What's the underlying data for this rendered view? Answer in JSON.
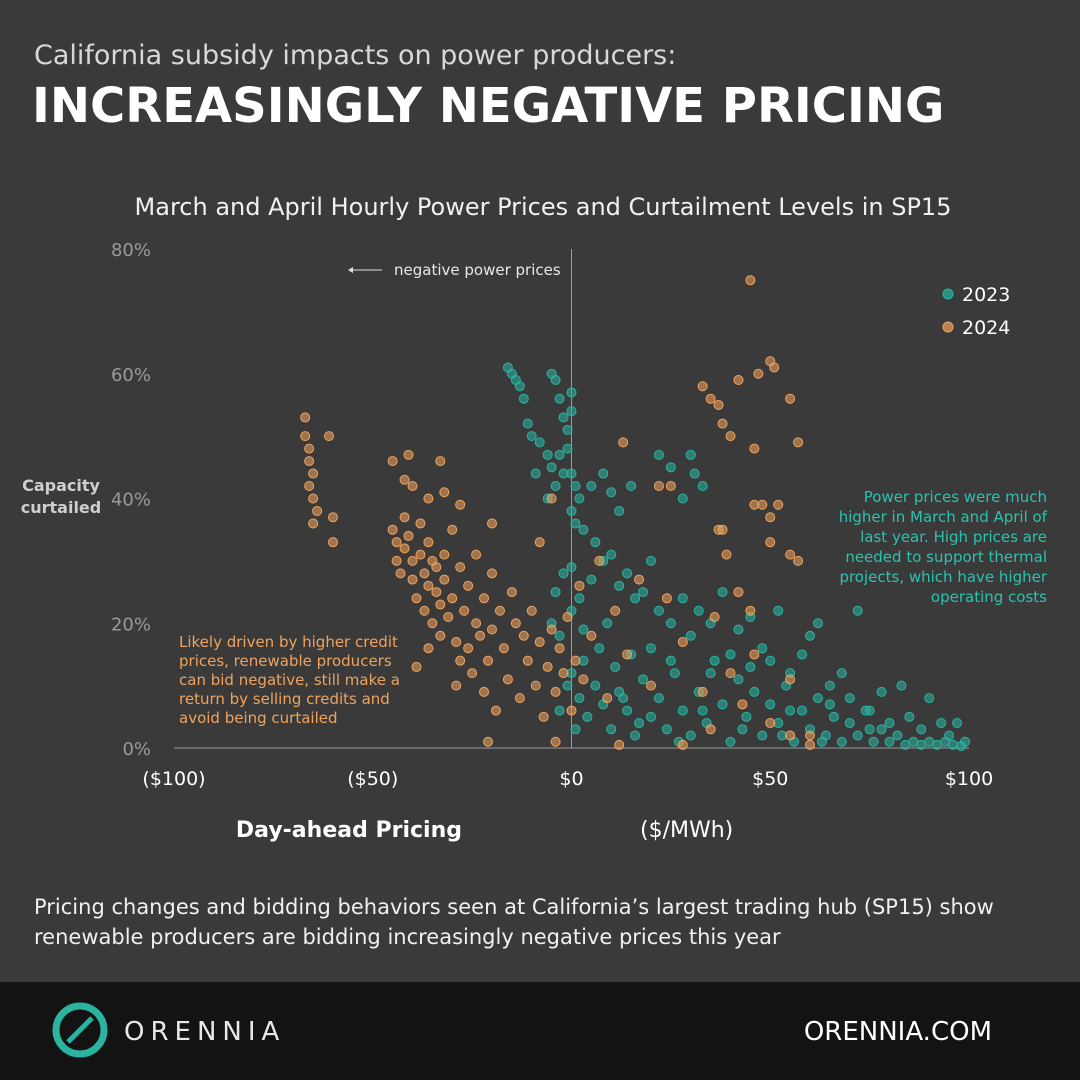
{
  "header": {
    "subtitle": "California subsidy impacts on power producers:",
    "title": "INCREASINGLY NEGATIVE PRICING"
  },
  "chart_data": {
    "type": "scatter",
    "title": "March and April Hourly Power Prices and Curtailment Levels in SP15",
    "x_label": "Day-ahead Pricing",
    "x_label_unit": "($/MWh)",
    "y_label": [
      "Capacity",
      "curtailed"
    ],
    "xlim": [
      -100,
      100
    ],
    "ylim": [
      0,
      80
    ],
    "xticks": [
      {
        "value": -100,
        "label": "($100)"
      },
      {
        "value": -50,
        "label": "($50)"
      },
      {
        "value": 0,
        "label": "$0"
      },
      {
        "value": 50,
        "label": "$50"
      },
      {
        "value": 100,
        "label": "$100"
      }
    ],
    "yticks": [
      {
        "value": 0,
        "label": "0%"
      },
      {
        "value": 20,
        "label": "20%"
      },
      {
        "value": 40,
        "label": "40%"
      },
      {
        "value": 60,
        "label": "60%"
      },
      {
        "value": 80,
        "label": "80%"
      }
    ],
    "reference_line_x": 0,
    "grid": false,
    "legend": "top-right",
    "annotations": {
      "arrow_note": "negative power prices",
      "left_note": [
        "Likely driven by higher credit",
        "prices, renewable producers",
        "can bid negative, still make a",
        "return by selling credits and",
        "avoid being curtailed"
      ],
      "right_note": [
        "Power prices were much",
        "higher in March and April of",
        "last year. High prices are",
        "needed to support thermal",
        "projects, which have higher",
        "operating costs"
      ]
    },
    "series": [
      {
        "name": "2023",
        "color": "#27b5a2",
        "x": [
          -16,
          -15,
          -14,
          -12,
          -11,
          -10,
          -13,
          -5,
          -4,
          -3,
          -2,
          -1,
          0,
          0,
          -1,
          -3,
          -5,
          -6,
          -8,
          -2,
          0,
          1,
          2,
          0,
          1,
          3,
          5,
          8,
          10,
          12,
          15,
          22,
          25,
          30,
          31,
          33,
          28,
          -6,
          -9,
          -4,
          -4,
          -2,
          0,
          -5,
          -3,
          0,
          2,
          3,
          5,
          6,
          8,
          10,
          12,
          14,
          16,
          18,
          20,
          22,
          25,
          28,
          30,
          32,
          35,
          38,
          40,
          42,
          45,
          48,
          50,
          52,
          55,
          58,
          60,
          62,
          65,
          68,
          70,
          72,
          75,
          78,
          80,
          83,
          85,
          88,
          90,
          93,
          95,
          97,
          99,
          0,
          2,
          4,
          6,
          8,
          10,
          12,
          14,
          16,
          18,
          20,
          22,
          24,
          26,
          28,
          30,
          32,
          34,
          36,
          38,
          40,
          42,
          44,
          46,
          48,
          50,
          52,
          54,
          56,
          58,
          60,
          62,
          64,
          66,
          68,
          70,
          72,
          74,
          76,
          78,
          80,
          82,
          84,
          86,
          88,
          90,
          92,
          94,
          96,
          98,
          15,
          20,
          25,
          35,
          45,
          55,
          65,
          75,
          13,
          17,
          27,
          33,
          43,
          53,
          63,
          -3,
          -1,
          3,
          7,
          9,
          11,
          1
        ],
        "values": [
          61,
          60,
          59,
          56,
          52,
          50,
          58,
          60,
          59,
          56,
          53,
          51,
          57,
          54,
          48,
          47,
          45,
          47,
          49,
          44,
          44,
          42,
          40,
          38,
          36,
          35,
          42,
          44,
          41,
          38,
          42,
          47,
          45,
          47,
          44,
          42,
          40,
          40,
          44,
          42,
          25,
          28,
          29,
          20,
          18,
          22,
          24,
          19,
          27,
          33,
          30,
          31,
          26,
          28,
          24,
          25,
          30,
          22,
          20,
          24,
          18,
          22,
          20,
          25,
          15,
          19,
          21,
          16,
          14,
          22,
          12,
          15,
          18,
          20,
          10,
          12,
          8,
          22,
          6,
          9,
          4,
          10,
          5,
          3,
          8,
          4,
          2,
          4,
          1,
          12,
          8,
          5,
          10,
          7,
          3,
          9,
          6,
          2,
          11,
          5,
          8,
          3,
          12,
          6,
          2,
          9,
          4,
          14,
          7,
          1,
          11,
          5,
          9,
          2,
          7,
          4,
          10,
          1,
          6,
          3,
          8,
          2,
          5,
          1,
          4,
          2,
          6,
          1,
          3,
          1,
          2,
          0.5,
          1,
          0.5,
          1,
          0.5,
          1,
          0.5,
          0.3,
          15,
          16,
          14,
          12,
          13,
          6,
          7,
          3,
          8,
          4,
          1,
          6,
          3,
          2,
          1,
          6,
          10,
          14,
          16,
          20,
          13,
          3
        ]
      },
      {
        "name": "2024",
        "color": "#f0a35e",
        "x": [
          -67,
          -67,
          -66,
          -66,
          -65,
          -66,
          -65,
          -64,
          -65,
          -61,
          -60,
          -60,
          -45,
          -44,
          -44,
          -43,
          -42,
          -42,
          -41,
          -40,
          -40,
          -39,
          -38,
          -38,
          -37,
          -37,
          -36,
          -36,
          -35,
          -35,
          -34,
          -34,
          -33,
          -33,
          -32,
          -32,
          -31,
          -30,
          -30,
          -29,
          -28,
          -28,
          -27,
          -26,
          -26,
          -25,
          -24,
          -24,
          -23,
          -22,
          -22,
          -21,
          -20,
          -20,
          -19,
          -18,
          -17,
          -16,
          -15,
          -14,
          -13,
          -12,
          -11,
          -10,
          -9,
          -8,
          -7,
          -6,
          -5,
          -4,
          -3,
          -2,
          -1,
          0,
          1,
          2,
          3,
          5,
          7,
          9,
          11,
          14,
          17,
          20,
          24,
          28,
          33,
          36,
          40,
          43,
          46,
          50,
          55,
          60,
          42,
          45,
          -32,
          -36,
          -40,
          -42,
          -45,
          -41,
          -33,
          -28,
          -20,
          -39,
          -36,
          -29,
          -21,
          -8,
          -5,
          13,
          25,
          22,
          33,
          35,
          37,
          38,
          40,
          42,
          45,
          46,
          47,
          50,
          51,
          55,
          57,
          46,
          48,
          50,
          52,
          50,
          55,
          57,
          37,
          38,
          39,
          12,
          28,
          -4,
          35,
          55,
          60
        ],
        "values": [
          53,
          50,
          48,
          46,
          44,
          42,
          40,
          38,
          36,
          50,
          37,
          33,
          35,
          33,
          30,
          28,
          32,
          37,
          34,
          30,
          27,
          24,
          36,
          31,
          28,
          22,
          33,
          26,
          30,
          20,
          25,
          29,
          23,
          18,
          31,
          27,
          21,
          35,
          24,
          17,
          29,
          14,
          22,
          26,
          16,
          12,
          20,
          31,
          18,
          24,
          9,
          14,
          28,
          19,
          6,
          22,
          16,
          11,
          25,
          20,
          8,
          18,
          14,
          22,
          10,
          17,
          5,
          13,
          19,
          9,
          16,
          12,
          21,
          6,
          14,
          26,
          11,
          18,
          30,
          8,
          22,
          15,
          27,
          10,
          24,
          17,
          9,
          21,
          12,
          7,
          15,
          4,
          11,
          2,
          25,
          22,
          41,
          40,
          42,
          43,
          46,
          47,
          46,
          39,
          36,
          13,
          16,
          10,
          1,
          33,
          40,
          49,
          42,
          42,
          58,
          56,
          55,
          52,
          50,
          59,
          75,
          48,
          60,
          62,
          61,
          56,
          49,
          39,
          39,
          37,
          39,
          33,
          31,
          30,
          35,
          35,
          31,
          0.5,
          0.5,
          1,
          3,
          2,
          0.5
        ]
      }
    ]
  },
  "caption": "Pricing changes and bidding behaviors seen at California’s largest trading hub (SP15) show renewable producers are bidding increasingly negative prices this year",
  "footer": {
    "brand": "ORENNIA",
    "url": "ORENNIA.COM"
  }
}
